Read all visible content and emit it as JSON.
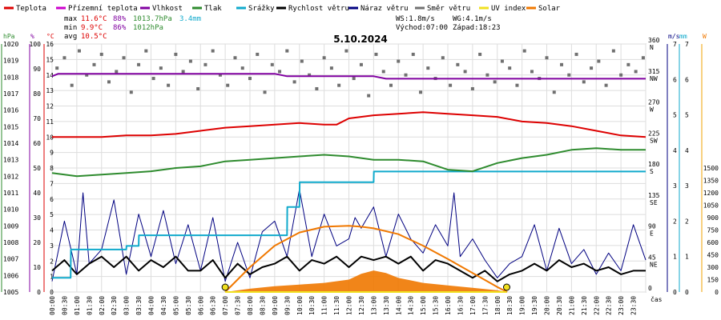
{
  "chart_data": {
    "type": "line",
    "title": "5.10.2024",
    "legend": [
      {
        "label": "Teplota",
        "color": "#dd0000"
      },
      {
        "label": "Přízemní teplota",
        "color": "#cc00cc"
      },
      {
        "label": "Vlhkost",
        "color": "#8000a0"
      },
      {
        "label": "Tlak",
        "color": "#2e8b2e"
      },
      {
        "label": "Srážky",
        "color": "#11aacc"
      },
      {
        "label": "Rychlost větru",
        "color": "#000000"
      },
      {
        "label": "Náraz větru",
        "color": "#000080"
      },
      {
        "label": "Směr větru",
        "color": "#707070"
      },
      {
        "label": "UV index",
        "color": "#f0e020"
      },
      {
        "label": "Solar",
        "color": "#f07800"
      }
    ],
    "stats": {
      "max_label": "max",
      "max_temp": "11.6°C",
      "max_hum": "88%",
      "max_press": "1013.7hPa",
      "rain": "3.4mm",
      "min_label": "min",
      "min_temp": "9.9°C",
      "min_hum": "86%",
      "min_press": "1012hPa",
      "avg_label": "avg",
      "avg_temp": "10.5°C",
      "ws": "WS:1.8m/s",
      "wg": "WG:4.1m/s",
      "sunrise": "Východ:07:00",
      "sunset": "Západ:18:23"
    },
    "axes": {
      "pressure": {
        "unit": "hPa",
        "ticks": [
          "1020",
          "1019",
          "1018",
          "1017",
          "1016",
          "1015",
          "1014",
          "1013",
          "1012",
          "1011",
          "1010",
          "1009",
          "1008",
          "1007",
          "1006",
          "1005"
        ],
        "range": [
          1005,
          1020
        ]
      },
      "humidity": {
        "unit": "%",
        "ticks": [
          "100",
          "90",
          "80",
          "70",
          "60",
          "50",
          "40",
          "30",
          "20",
          "10",
          "0"
        ],
        "range": [
          0,
          100
        ]
      },
      "temperature": {
        "unit": "°C",
        "ticks": [
          "16",
          "15",
          "14",
          "13",
          "12",
          "11",
          "10",
          "9",
          "8",
          "7",
          "6",
          "5",
          "4",
          "3",
          "2",
          "1",
          "0"
        ],
        "range": [
          0,
          16
        ]
      },
      "wind_direction": {
        "ticks": [
          {
            "value": 360,
            "dir": "N"
          },
          {
            "value": 315,
            "dir": "NW"
          },
          {
            "value": 270,
            "dir": "W"
          },
          {
            "value": 225,
            "dir": "SW"
          },
          {
            "value": 180,
            "dir": "S"
          },
          {
            "value": 135,
            "dir": "SE"
          },
          {
            "value": 90,
            "dir": "E"
          },
          {
            "value": 45,
            "dir": "NE"
          },
          {
            "value": 0,
            "dir": ""
          }
        ],
        "range": [
          0,
          360
        ]
      },
      "wind_speed": {
        "unit": "m/s",
        "ticks": [
          "7",
          "6",
          "5",
          "4",
          "3",
          "2",
          "1",
          "0"
        ],
        "range": [
          0,
          7
        ]
      },
      "rain": {
        "unit": "mm",
        "ticks": [
          "7",
          "6",
          "5",
          "4",
          "3",
          "2",
          "1",
          "0"
        ],
        "range": [
          0,
          7
        ]
      },
      "solar": {
        "unit": "W",
        "ticks": [
          "1500",
          "1350",
          "1200",
          "1050",
          "900",
          "750",
          "600",
          "450",
          "300",
          "150",
          "0"
        ],
        "range": [
          0,
          1500
        ]
      },
      "time": {
        "unit": "čas",
        "labels": [
          "00:00",
          "00:30",
          "01:00",
          "01:30",
          "02:00",
          "02:30",
          "03:00",
          "03:30",
          "04:00",
          "04:30",
          "05:00",
          "05:30",
          "06:00",
          "06:30",
          "07:00",
          "07:30",
          "08:00",
          "08:30",
          "09:00",
          "09:30",
          "10:00",
          "10:30",
          "11:00",
          "11:30",
          "12:00",
          "12:30",
          "13:00",
          "13:30",
          "14:00",
          "14:30",
          "15:00",
          "15:30",
          "16:00",
          "16:30",
          "17:00",
          "17:30",
          "18:00",
          "18:30",
          "19:00",
          "19:30",
          "20:00",
          "20:30",
          "21:00",
          "21:30",
          "22:00",
          "22:30",
          "23:00",
          "23:30"
        ]
      }
    },
    "series": {
      "temperature": {
        "x": [
          0,
          1,
          2,
          3,
          4,
          5,
          6,
          7,
          8,
          9,
          10,
          11,
          11.5,
          12,
          13,
          14,
          15,
          16,
          17,
          18,
          19,
          20,
          21,
          22,
          23,
          24
        ],
        "y": [
          10.0,
          10.0,
          10.0,
          10.1,
          10.1,
          10.2,
          10.4,
          10.6,
          10.7,
          10.8,
          10.9,
          10.8,
          10.8,
          11.2,
          11.4,
          11.5,
          11.6,
          11.5,
          11.4,
          11.3,
          11.0,
          10.9,
          10.7,
          10.4,
          10.1,
          10.0
        ]
      },
      "humidity": {
        "x": [
          0,
          0.25,
          9.0,
          9.5,
          13.0,
          13.5,
          24
        ],
        "y": [
          87,
          88,
          88,
          87,
          87,
          86,
          86
        ]
      },
      "pressure": {
        "x": [
          0,
          1,
          2,
          3,
          4,
          5,
          6,
          7,
          8,
          9,
          10,
          11,
          12,
          13,
          14,
          15,
          16,
          17,
          18,
          19,
          20,
          21,
          22,
          23,
          24
        ],
        "y": [
          1012.2,
          1012.0,
          1012.1,
          1012.2,
          1012.3,
          1012.5,
          1012.6,
          1012.9,
          1013.0,
          1013.1,
          1013.2,
          1013.3,
          1013.2,
          1013.0,
          1013.0,
          1012.9,
          1012.4,
          1012.3,
          1012.8,
          1013.1,
          1013.3,
          1013.6,
          1013.7,
          1013.6,
          1013.6
        ]
      },
      "rain": {
        "x": [
          0,
          0.75,
          0.76,
          3.0,
          3.01,
          3.5,
          3.51,
          9.5,
          9.51,
          10.0,
          10.01,
          13.0,
          13.01,
          24
        ],
        "y": [
          0.4,
          0.4,
          1.2,
          1.2,
          1.3,
          1.3,
          1.6,
          1.6,
          2.4,
          2.4,
          3.1,
          3.1,
          3.4,
          3.4
        ]
      },
      "wind_speed": {
        "x": [
          0,
          0.5,
          1,
          1.5,
          2,
          2.5,
          3,
          3.5,
          4,
          4.5,
          5,
          5.5,
          6,
          6.5,
          7,
          7.5,
          8,
          8.5,
          9,
          9.5,
          10,
          10.5,
          11,
          11.5,
          12,
          12.5,
          13,
          13.5,
          14,
          14.5,
          15,
          15.5,
          16,
          16.5,
          17,
          17.5,
          18,
          18.5,
          19,
          19.5,
          20,
          20.5,
          21,
          21.5,
          22,
          22.5,
          23,
          23.5,
          24
        ],
        "y": [
          0.6,
          0.9,
          0.5,
          0.8,
          1.0,
          0.7,
          1.0,
          0.6,
          0.9,
          0.7,
          1.0,
          0.6,
          0.6,
          0.9,
          0.4,
          0.8,
          0.5,
          0.7,
          0.8,
          1.0,
          0.6,
          0.9,
          0.8,
          1.0,
          0.7,
          1.0,
          0.9,
          1.0,
          0.8,
          1.0,
          0.6,
          0.9,
          0.8,
          0.6,
          0.4,
          0.6,
          0.3,
          0.5,
          0.6,
          0.8,
          0.6,
          0.9,
          0.7,
          0.8,
          0.6,
          0.7,
          0.5,
          0.6,
          0.6
        ]
      },
      "wind_gust": {
        "x": [
          0,
          0.5,
          1,
          1.25,
          1.5,
          2,
          2.5,
          3,
          3.5,
          4,
          4.5,
          5,
          5.5,
          6,
          6.5,
          7,
          7.5,
          8,
          8.5,
          9,
          9.5,
          10,
          10.5,
          11,
          11.5,
          12,
          12.25,
          12.5,
          13,
          13.5,
          14,
          14.5,
          15,
          15.5,
          16,
          16.25,
          16.5,
          17,
          17.5,
          18,
          18.5,
          19,
          19.5,
          20,
          20.5,
          21,
          21.5,
          22,
          22.5,
          23,
          23.5,
          24
        ],
        "y": [
          0.3,
          2.0,
          0.5,
          2.8,
          0.8,
          1.2,
          2.6,
          0.5,
          2.2,
          1.0,
          2.3,
          0.8,
          1.9,
          0.6,
          2.1,
          0.3,
          1.4,
          0.4,
          1.7,
          2.0,
          1.0,
          2.9,
          1.0,
          2.2,
          1.3,
          1.5,
          2.1,
          1.8,
          2.4,
          1.0,
          2.2,
          1.5,
          1.1,
          1.9,
          1.3,
          2.8,
          1.0,
          1.5,
          0.9,
          0.4,
          0.8,
          1.0,
          1.9,
          0.6,
          1.8,
          0.8,
          1.2,
          0.5,
          1.1,
          0.6,
          1.9,
          0.9
        ]
      },
      "wind_direction": {
        "x": [
          0.2,
          0.5,
          0.8,
          1.1,
          1.4,
          1.7,
          2.0,
          2.3,
          2.6,
          2.9,
          3.2,
          3.5,
          3.8,
          4.1,
          4.4,
          4.7,
          5.0,
          5.3,
          5.6,
          5.9,
          6.2,
          6.5,
          6.8,
          7.1,
          7.4,
          7.7,
          8.0,
          8.3,
          8.6,
          8.9,
          9.2,
          9.5,
          9.8,
          10.1,
          10.4,
          10.7,
          11.0,
          11.3,
          11.6,
          11.9,
          12.2,
          12.5,
          12.8,
          13.1,
          13.4,
          13.7,
          14.0,
          14.3,
          14.6,
          14.9,
          15.2,
          15.5,
          15.8,
          16.1,
          16.4,
          16.7,
          17.0,
          17.3,
          17.6,
          17.9,
          18.2,
          18.5,
          18.8,
          19.1,
          19.4,
          19.7,
          20.0,
          20.3,
          20.6,
          20.9,
          21.2,
          21.5,
          21.8,
          22.1,
          22.4,
          22.7,
          23.0,
          23.3,
          23.6,
          23.9
        ],
        "y": [
          325,
          340,
          300,
          350,
          315,
          330,
          345,
          305,
          320,
          340,
          290,
          330,
          350,
          310,
          325,
          300,
          345,
          320,
          335,
          295,
          330,
          350,
          315,
          300,
          340,
          325,
          310,
          345,
          290,
          330,
          320,
          350,
          305,
          335,
          315,
          295,
          340,
          325,
          300,
          350,
          310,
          330,
          285,
          345,
          320,
          300,
          335,
          315,
          345,
          290,
          325,
          310,
          340,
          300,
          330,
          320,
          295,
          345,
          315,
          305,
          335,
          325,
          300,
          350,
          320,
          310,
          340,
          290,
          330,
          315,
          345,
          305,
          325,
          335,
          300,
          350,
          315,
          330,
          320,
          340
        ]
      },
      "solar": {
        "x": [
          7.0,
          8.0,
          9.0,
          10.0,
          11.0,
          12.0,
          12.5,
          13.0,
          14.0,
          15.0,
          16.0,
          17.0,
          18.0,
          18.4
        ],
        "y": [
          0,
          300,
          560,
          720,
          790,
          800,
          790,
          770,
          700,
          560,
          400,
          230,
          60,
          0
        ]
      },
      "uv_index": {
        "x": [
          7.0,
          18.38
        ],
        "y": [
          0,
          0
        ]
      },
      "solar_measured": {
        "x": [
          7.0,
          8.0,
          9.0,
          10.0,
          11.0,
          12.0,
          12.5,
          13.0,
          13.5,
          14.0,
          15.0,
          16.0,
          17.0,
          18.0,
          18.4
        ],
        "y": [
          0,
          40,
          70,
          90,
          110,
          150,
          220,
          260,
          230,
          170,
          110,
          80,
          50,
          20,
          0
        ]
      }
    }
  }
}
